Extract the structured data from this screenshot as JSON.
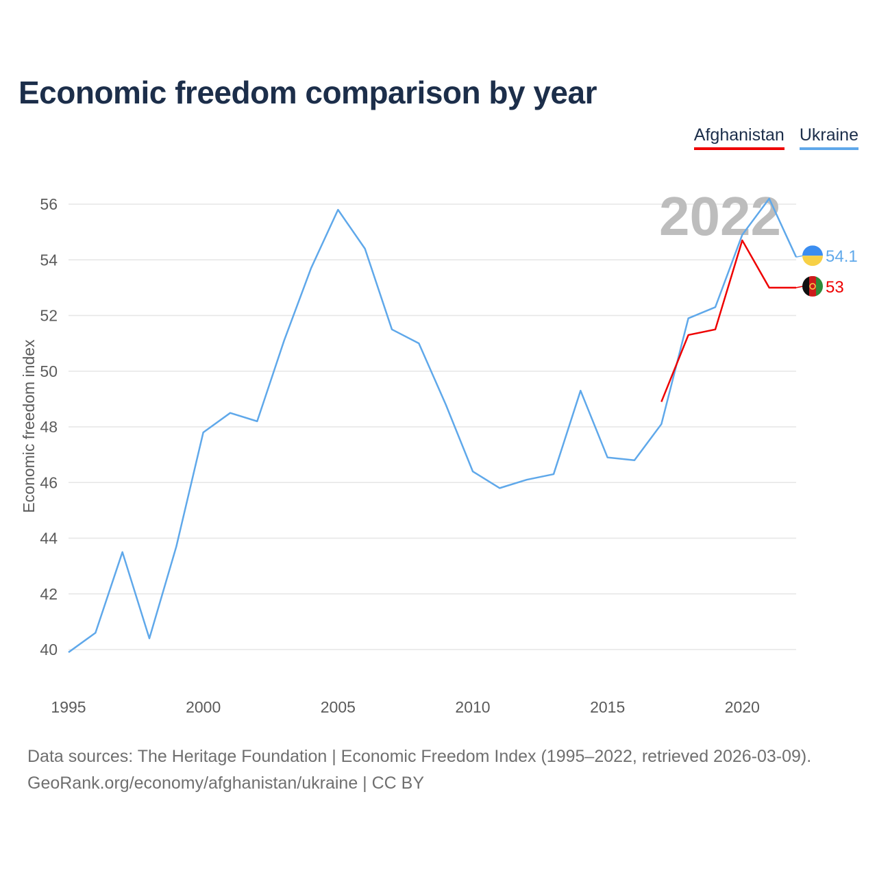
{
  "title": "Economic freedom comparison by year",
  "legend": [
    {
      "name": "Afghanistan",
      "color": "#ee0000"
    },
    {
      "name": "Ukraine",
      "color": "#5fa8ea"
    }
  ],
  "source": {
    "line1": "Data sources: The Heritage Foundation | Economic Freedom Index (1995–2022, retrieved 2026-03-09).",
    "line2": "GeoRank.org/economy/afghanistan/ukraine | CC BY"
  },
  "chart_data": {
    "type": "line",
    "title": "Economic freedom comparison by year",
    "xlabel": "",
    "ylabel": "Economic freedom index",
    "xlim": [
      1995,
      2022
    ],
    "ylim": [
      40,
      56
    ],
    "yticks": [
      40,
      42,
      44,
      46,
      48,
      50,
      52,
      54,
      56
    ],
    "xticks": [
      1995,
      2000,
      2005,
      2010,
      2015,
      2020
    ],
    "highlight_year": "2022",
    "grid": true,
    "legend_position": "top-right",
    "series": [
      {
        "name": "Ukraine",
        "color": "#5fa8ea",
        "end_label": "54.1",
        "flag": "ukraine-flag",
        "x": [
          1995,
          1996,
          1997,
          1998,
          1999,
          2000,
          2001,
          2002,
          2003,
          2004,
          2005,
          2006,
          2007,
          2008,
          2009,
          2010,
          2011,
          2012,
          2013,
          2014,
          2015,
          2016,
          2017,
          2018,
          2019,
          2020,
          2021,
          2022
        ],
        "values": [
          39.9,
          40.6,
          43.5,
          40.4,
          43.7,
          47.8,
          48.5,
          48.2,
          51.1,
          53.7,
          55.8,
          54.4,
          51.5,
          51.0,
          48.8,
          46.4,
          45.8,
          46.1,
          46.3,
          49.3,
          46.9,
          46.8,
          48.1,
          51.9,
          52.3,
          54.9,
          56.2,
          54.1
        ]
      },
      {
        "name": "Afghanistan",
        "color": "#ee0000",
        "end_label": "53",
        "flag": "afghanistan-flag",
        "x": [
          2017,
          2018,
          2019,
          2020,
          2021,
          2022
        ],
        "values": [
          48.9,
          51.3,
          51.5,
          54.7,
          53.0,
          53.0
        ]
      }
    ]
  }
}
